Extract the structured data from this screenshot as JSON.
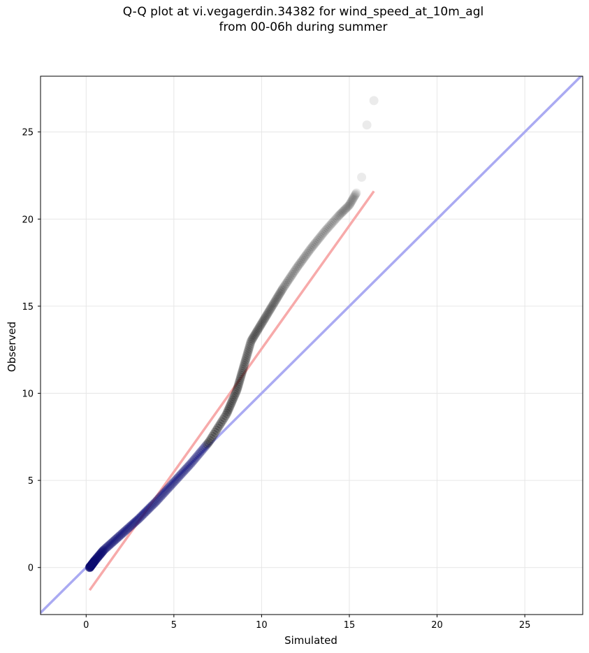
{
  "chart_data": {
    "type": "scatter",
    "title_line1": "Q-Q plot at vi.vegagerdin.34382 for wind_speed_at_10m_agl",
    "title_line2": "from 00-06h during summer",
    "xlabel": "Simulated",
    "ylabel": "Observed",
    "xlim": [
      -2.6,
      28.3
    ],
    "ylim": [
      -2.7,
      28.2
    ],
    "xticks": [
      0,
      5,
      10,
      15,
      20,
      25
    ],
    "yticks": [
      0,
      5,
      10,
      15,
      20,
      25
    ],
    "grid": true,
    "colors": {
      "points": "#000000",
      "identity_line": "#aaaaf2",
      "fit_line": "#f7aaaa",
      "low_range_tint": "#0a0a6e"
    },
    "identity_line": {
      "x": [
        -2.6,
        28.3
      ],
      "y": [
        -2.6,
        28.3
      ]
    },
    "fit_line": {
      "x": [
        0.2,
        16.4
      ],
      "y": [
        -1.3,
        21.6
      ]
    },
    "anchors": [
      [
        0.2,
        0.0
      ],
      [
        0.5,
        0.4
      ],
      [
        1.0,
        1.0
      ],
      [
        2.0,
        1.9
      ],
      [
        3.0,
        2.8
      ],
      [
        4.0,
        3.8
      ],
      [
        5.0,
        4.9
      ],
      [
        6.0,
        6.0
      ],
      [
        7.0,
        7.2
      ],
      [
        8.0,
        8.8
      ],
      [
        8.6,
        10.2
      ],
      [
        9.0,
        11.6
      ],
      [
        9.4,
        13.0
      ],
      [
        10.0,
        14.0
      ],
      [
        10.6,
        15.0
      ],
      [
        11.2,
        16.0
      ],
      [
        12.0,
        17.2
      ],
      [
        12.8,
        18.3
      ],
      [
        13.6,
        19.3
      ],
      [
        14.4,
        20.2
      ],
      [
        15.0,
        20.8
      ],
      [
        15.4,
        21.5
      ]
    ],
    "outliers": [
      [
        15.7,
        22.4
      ],
      [
        16.0,
        25.4
      ],
      [
        16.4,
        26.8
      ]
    ],
    "point_count": 300
  }
}
